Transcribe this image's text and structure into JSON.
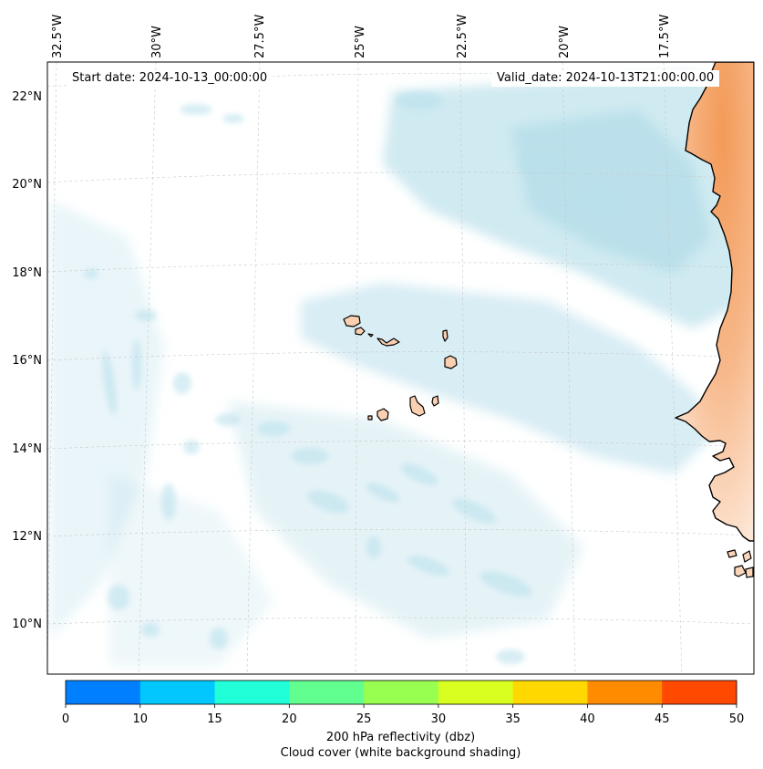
{
  "header": {
    "start_date": "Start date: 2024-10-13_00:00:00",
    "valid_date": "Valid_date: 2024-10-13T21:00:00.00"
  },
  "map": {
    "projection_note": "Lambert conformal",
    "lon_labels": [
      "32.5°W",
      "30°W",
      "27.5°W",
      "25°W",
      "22.5°W",
      "20°W",
      "17.5°W"
    ],
    "lat_labels": [
      "22°N",
      "20°N",
      "18°N",
      "16°N",
      "14°N",
      "12°N",
      "10°N"
    ],
    "gridlines": true,
    "land_color": "#f4a46a",
    "cloud_color": "#a8d8e6",
    "coastline_color": "#000000"
  },
  "colorbar": {
    "colors": [
      "#0080ff",
      "#00c8ff",
      "#20ffd8",
      "#60ff90",
      "#98ff50",
      "#d8ff20",
      "#ffd800",
      "#ff8c00",
      "#ff4800"
    ],
    "tick_labels": [
      "0",
      "10",
      "15",
      "20",
      "25",
      "30",
      "35",
      "40",
      "45",
      "50"
    ],
    "label_line1": "200 hPa reflectivity (dbz)",
    "label_line2": "Cloud cover (white background shading)"
  }
}
